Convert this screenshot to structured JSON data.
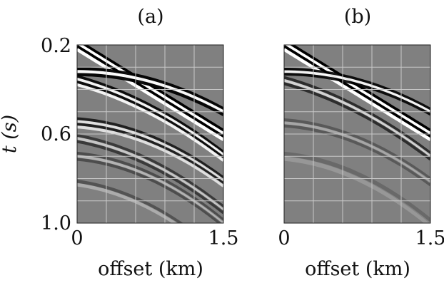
{
  "panels": [
    {
      "label": "(a)",
      "x_ticks": [
        "0",
        "1.5"
      ],
      "x_axis_title": "offset (km)",
      "events": [
        {
          "t0": 0.2,
          "slope": 0.27,
          "curv": 0.0,
          "amp": 1.0,
          "thick": 0.055,
          "stripes": 4
        },
        {
          "t0": 0.32,
          "slope": 0.0,
          "curv": 0.18,
          "amp": 0.95,
          "thick": 0.04,
          "stripes": 3
        },
        {
          "t0": 0.36,
          "slope": 0.12,
          "curv": 0.16,
          "amp": 0.9,
          "thick": 0.05,
          "stripes": 4
        },
        {
          "t0": 0.55,
          "slope": 0.03,
          "curv": 0.22,
          "amp": 0.75,
          "thick": 0.05,
          "stripes": 4
        },
        {
          "t0": 0.62,
          "slope": 0.08,
          "curv": 0.2,
          "amp": 0.55,
          "thick": 0.04,
          "stripes": 3
        },
        {
          "t0": 0.7,
          "slope": 0.04,
          "curv": 0.24,
          "amp": 0.4,
          "thick": 0.04,
          "stripes": 3
        },
        {
          "t0": 0.82,
          "slope": 0.06,
          "curv": 0.25,
          "amp": 0.35,
          "thick": 0.03,
          "stripes": 2
        }
      ]
    },
    {
      "label": "(b)",
      "x_ticks": [
        "0",
        "1.5"
      ],
      "x_axis_title": "offset (km)",
      "events": [
        {
          "t0": 0.2,
          "slope": 0.27,
          "curv": 0.0,
          "amp": 1.0,
          "thick": 0.055,
          "stripes": 4
        },
        {
          "t0": 0.32,
          "slope": 0.0,
          "curv": 0.18,
          "amp": 0.9,
          "thick": 0.035,
          "stripes": 3
        },
        {
          "t0": 0.36,
          "slope": 0.12,
          "curv": 0.16,
          "amp": 0.65,
          "thick": 0.04,
          "stripes": 3
        },
        {
          "t0": 0.55,
          "slope": 0.03,
          "curv": 0.22,
          "amp": 0.3,
          "thick": 0.04,
          "stripes": 3
        },
        {
          "t0": 0.7,
          "slope": 0.04,
          "curv": 0.24,
          "amp": 0.18,
          "thick": 0.04,
          "stripes": 2
        }
      ]
    }
  ],
  "y_axis": {
    "title": "t (s)",
    "ticks": [
      "0.2",
      "0.6",
      "1.0"
    ]
  },
  "colors": {
    "background": "#ffffff",
    "panel_fill": "#808080",
    "grid": "#c8c8c8",
    "dark": "#000000",
    "light": "#ffffff",
    "text": "#111111"
  }
}
